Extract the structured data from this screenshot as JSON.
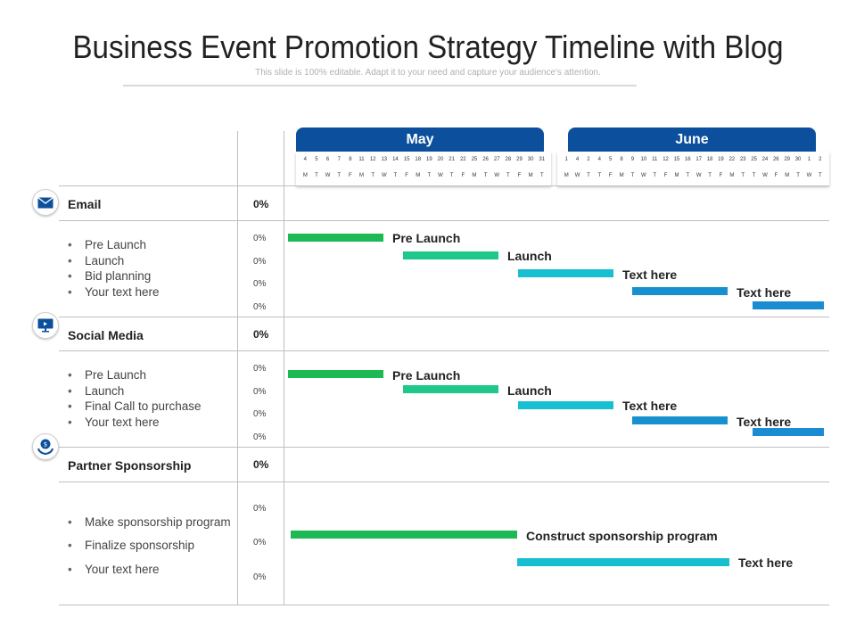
{
  "header": {
    "title": "Business Event Promotion Strategy Timeline with Blog",
    "subtitle": "This slide is 100% editable. Adapt it to your need and capture your audience's attention."
  },
  "months": [
    {
      "name": "May",
      "days": [
        "4",
        "5",
        "6",
        "7",
        "8",
        "11",
        "12",
        "13",
        "14",
        "15",
        "18",
        "19",
        "20",
        "21",
        "22",
        "25",
        "26",
        "27",
        "28",
        "29",
        "30",
        "31"
      ],
      "weekdays": [
        "M",
        "T",
        "W",
        "T",
        "F",
        "M",
        "T",
        "W",
        "T",
        "F",
        "M",
        "T",
        "W",
        "T",
        "F",
        "M",
        "T",
        "W",
        "T",
        "F",
        "M",
        "T"
      ]
    },
    {
      "name": "June",
      "days": [
        "1",
        "4",
        "2",
        "4",
        "5",
        "8",
        "9",
        "10",
        "11",
        "12",
        "15",
        "16",
        "17",
        "18",
        "19",
        "22",
        "23",
        "25",
        "24",
        "26",
        "29",
        "30",
        "1",
        "2"
      ],
      "weekdays": [
        "M",
        "W",
        "T",
        "T",
        "F",
        "M",
        "T",
        "W",
        "T",
        "F",
        "M",
        "T",
        "W",
        "T",
        "F",
        "M",
        "T",
        "T",
        "W",
        "F",
        "M",
        "T",
        "W",
        "T"
      ]
    }
  ],
  "categories": [
    {
      "icon": "envelope-icon",
      "label": "Email",
      "percent": "0%",
      "items": [
        {
          "label": "Pre Launch",
          "percent": "0%"
        },
        {
          "label": "Launch",
          "percent": "0%"
        },
        {
          "label": "Bid planning",
          "percent": "0%"
        },
        {
          "label": "Your text here",
          "percent": "0%"
        }
      ],
      "bars": [
        {
          "label": "Pre Launch",
          "color": "#1db954"
        },
        {
          "label": "Launch",
          "color": "#1ec78a"
        },
        {
          "label": "Text here",
          "color": "#17bfd0"
        },
        {
          "label": "Text here",
          "color": "#1890cf"
        },
        {
          "label": "",
          "color": "#1a8cd2"
        }
      ]
    },
    {
      "icon": "monitor-icon",
      "label": "Social Media",
      "percent": "0%",
      "items": [
        {
          "label": "Pre Launch",
          "percent": "0%"
        },
        {
          "label": "Launch",
          "percent": "0%"
        },
        {
          "label": "Final Call to purchase",
          "percent": "0%"
        },
        {
          "label": "Your text here",
          "percent": "0%"
        }
      ],
      "bars": [
        {
          "label": "Pre Launch",
          "color": "#1db954"
        },
        {
          "label": "Launch",
          "color": "#1ec78a"
        },
        {
          "label": "Text here",
          "color": "#17bfd0"
        },
        {
          "label": "Text here",
          "color": "#1890cf"
        },
        {
          "label": "",
          "color": "#1a8cd2"
        }
      ]
    },
    {
      "icon": "hand-coin-icon",
      "label": "Partner Sponsorship",
      "percent": "0%",
      "items": [
        {
          "label": "Make sponsorship program",
          "percent": "0%"
        },
        {
          "label": "Finalize sponsorship",
          "percent": "0%"
        },
        {
          "label": "Your text here",
          "percent": "0%"
        }
      ],
      "bars": [
        {
          "label": "Construct sponsorship  program",
          "color": "#1db954"
        },
        {
          "label": "Text here",
          "color": "#17bfd0"
        }
      ]
    }
  ]
}
